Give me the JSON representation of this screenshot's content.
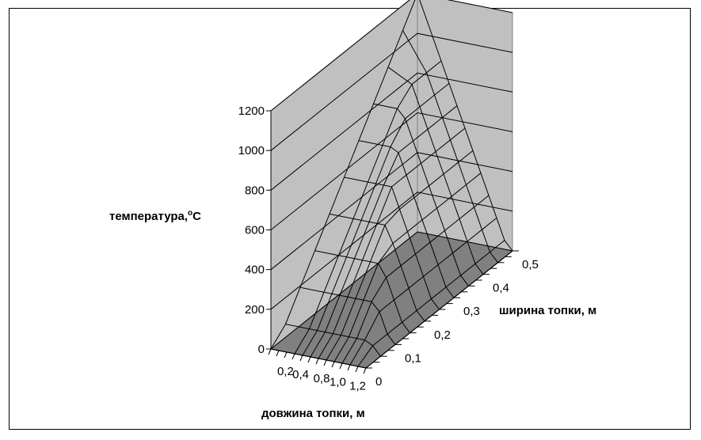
{
  "chart_data": {
    "type": "surface",
    "title": "",
    "zlabel": "температура,",
    "zlabel_unit": "C",
    "zlabel_superscript": "o",
    "xlabel": "довжина топки, м",
    "ylabel": "ширина топки, м",
    "z_ticks": [
      "0",
      "200",
      "400",
      "600",
      "800",
      "1000",
      "1200"
    ],
    "x_ticks": [
      "0,2",
      "0,4",
      "0,8",
      "1,0",
      "1,2"
    ],
    "y_ticks": [
      "0",
      "0,1",
      "0,2",
      "0,3",
      "0,4",
      "0,5"
    ],
    "zlim": [
      0,
      1200
    ],
    "xlim": [
      0,
      1.2
    ],
    "ylim": [
      0,
      0.5
    ],
    "x": [
      0.2,
      0.3,
      0.4,
      0.5,
      0.6,
      0.7,
      0.8,
      0.9,
      1.0,
      1.1,
      1.2
    ],
    "y": [
      0,
      0.05,
      0.1,
      0.15,
      0.2,
      0.25,
      0.3,
      0.35,
      0.4,
      0.45,
      0.5
    ],
    "peak": {
      "x": 0.2,
      "y": 0.5,
      "z": 1200
    },
    "grid": true,
    "colors": {
      "wall": "#c0c0c0",
      "floor": "#808080",
      "line": "#000000"
    }
  }
}
